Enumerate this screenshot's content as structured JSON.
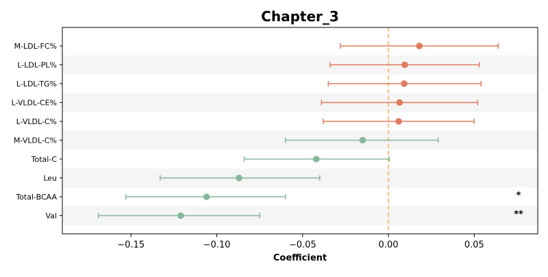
{
  "chart_data": {
    "type": "forest",
    "title": "Chapter_3",
    "xlabel": "Coefficient",
    "ylabel": "",
    "xlim": [
      -0.19,
      0.087
    ],
    "xticks": [
      -0.15,
      -0.1,
      -0.05,
      0.0,
      0.05
    ],
    "xtick_labels": [
      "−0.15",
      "−0.10",
      "−0.05",
      "0.00",
      "0.05"
    ],
    "reference_line": 0.0,
    "grid": false,
    "alternating_row_bands": true,
    "colors": {
      "positive": "#e07b5f",
      "negative": "#86b79c",
      "reference": "#f0c27b",
      "band": "#f5f5f5"
    },
    "rows": [
      {
        "label": "M-LDL-FC%",
        "coef": 0.018,
        "ci_low": -0.028,
        "ci_high": 0.064,
        "significance": ""
      },
      {
        "label": "L-LDL-PL%",
        "coef": 0.0095,
        "ci_low": -0.034,
        "ci_high": 0.053,
        "significance": ""
      },
      {
        "label": "L-LDL-TG%",
        "coef": 0.0092,
        "ci_low": -0.035,
        "ci_high": 0.054,
        "significance": ""
      },
      {
        "label": "L-VLDL-CE%",
        "coef": 0.0065,
        "ci_low": -0.039,
        "ci_high": 0.052,
        "significance": ""
      },
      {
        "label": "L-VLDL-C%",
        "coef": 0.006,
        "ci_low": -0.038,
        "ci_high": 0.05,
        "significance": ""
      },
      {
        "label": "M-VLDL-C%",
        "coef": -0.015,
        "ci_low": -0.06,
        "ci_high": 0.029,
        "significance": ""
      },
      {
        "label": "Total-C",
        "coef": -0.042,
        "ci_low": -0.084,
        "ci_high": 0.0005,
        "significance": ""
      },
      {
        "label": "Leu",
        "coef": -0.087,
        "ci_low": -0.133,
        "ci_high": -0.04,
        "significance": ""
      },
      {
        "label": "Total-BCAA",
        "coef": -0.106,
        "ci_low": -0.153,
        "ci_high": -0.06,
        "significance": "*"
      },
      {
        "label": "Val",
        "coef": -0.121,
        "ci_low": -0.169,
        "ci_high": -0.075,
        "significance": "**"
      }
    ]
  }
}
